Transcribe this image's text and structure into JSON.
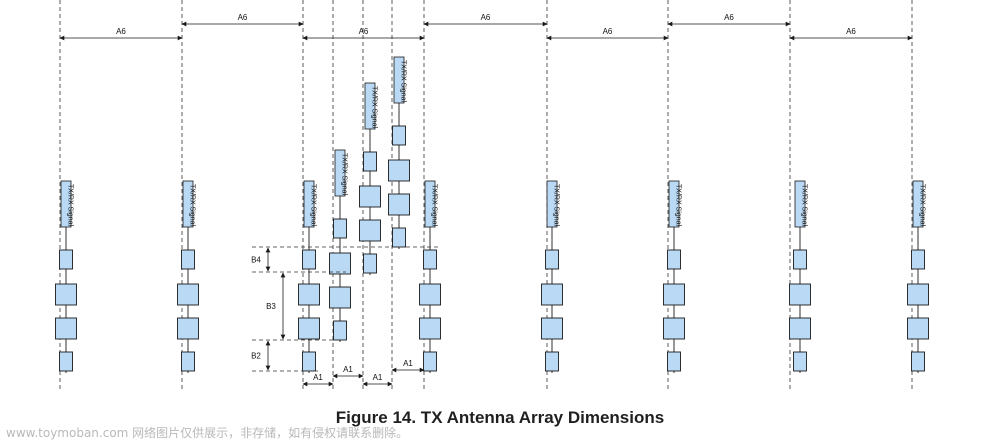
{
  "figure": {
    "caption": "Figure 14. TX Antenna Array Dimensions",
    "element_label": "TX/RX Signal"
  },
  "dimensions": {
    "a6": "A6",
    "a1": "A1",
    "b2": "B2",
    "b3": "B3",
    "b4": "B4"
  },
  "watermark": "www.toymoban.com 网络图片仅供展示，非存储，如有侵权请联系删除。",
  "colors": {
    "fill": "#b9d9f5",
    "stroke": "#1a1a1a"
  }
}
